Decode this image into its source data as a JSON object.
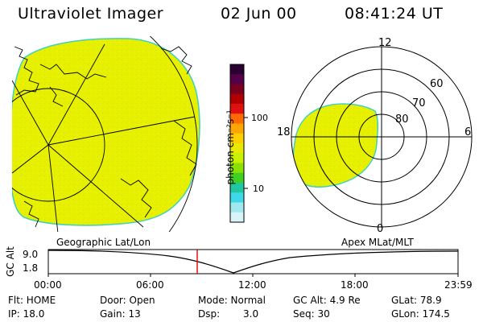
{
  "header": {
    "title": "Ultraviolet Imager",
    "date": "02 Jun 00",
    "time": "08:41:24 UT"
  },
  "colorbar": {
    "unit_label": "photon cm⁻²s⁻¹",
    "tick_labels": [
      "100",
      "10"
    ],
    "colors": [
      "#2a0030",
      "#55004a",
      "#7a0020",
      "#b00000",
      "#e01010",
      "#ff6a00",
      "#ffa500",
      "#ffd000",
      "#e8e800",
      "#c8f000",
      "#8ce000",
      "#40d020",
      "#20c8a0",
      "#40d8e8",
      "#a0e8f0",
      "#d8f4f8"
    ]
  },
  "polar_plot": {
    "label_top": "12",
    "label_bottom": "0",
    "label_left": "18",
    "label_right": "6",
    "lat_labels": [
      "60",
      "70",
      "80"
    ]
  },
  "labels": {
    "left_map": "Geographic Lat/Lon",
    "right_map": "Apex MLat/MLT"
  },
  "altitude_plot": {
    "ylabel": "GC Alt",
    "y_ticks": [
      "9.0",
      "1.8"
    ],
    "x_ticks": [
      "00:00",
      "06:00",
      "12:00",
      "18:00",
      "23:59"
    ],
    "marker_color": "#e00000"
  },
  "status": {
    "flt": "Flt: HOME",
    "ip": "IP: 18.0",
    "door": "Door: Open",
    "gain": "Gain: 13",
    "mode": "Mode: Normal",
    "dsp_label": "Dsp:",
    "dsp_value": "3.0",
    "gc_alt": "GC Alt: 4.9 Re",
    "seq": "Seq: 30",
    "glat": "GLat: 78.9",
    "glon": "GLon: 174.5"
  },
  "image_colors": {
    "aurora_fill": "#e6f000",
    "aurora_edge": "#40d0c0"
  }
}
